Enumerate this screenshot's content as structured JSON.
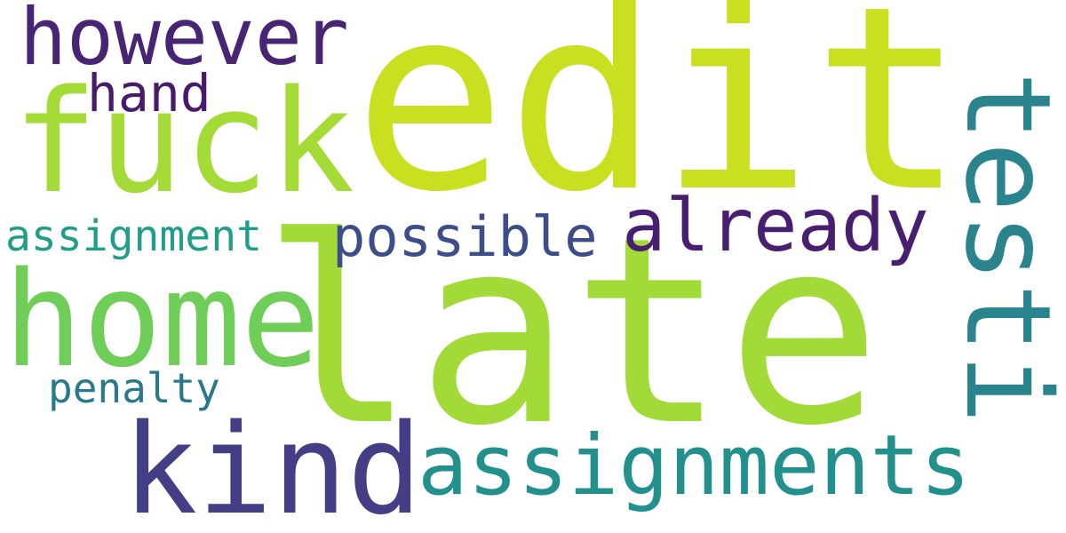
{
  "wordcloud": {
    "background": "#ffffff",
    "words": [
      {
        "text": "edit",
        "color": "#c8e020"
      },
      {
        "text": "late",
        "color": "#a2da37"
      },
      {
        "text": "fuck",
        "color": "#a5db36"
      },
      {
        "text": "home",
        "color": "#6ece58"
      },
      {
        "text": "kind",
        "color": "#433e85"
      },
      {
        "text": "testi",
        "color": "#2a848e",
        "orientation": "vertical"
      },
      {
        "text": "assignments",
        "color": "#22908c"
      },
      {
        "text": "already",
        "color": "#481f70"
      },
      {
        "text": "however",
        "color": "#482475"
      },
      {
        "text": "possible",
        "color": "#3d4d8a"
      },
      {
        "text": "hand",
        "color": "#481a6c"
      },
      {
        "text": "assignment",
        "color": "#1f9e89"
      },
      {
        "text": "penalty",
        "color": "#2a788e"
      }
    ]
  }
}
